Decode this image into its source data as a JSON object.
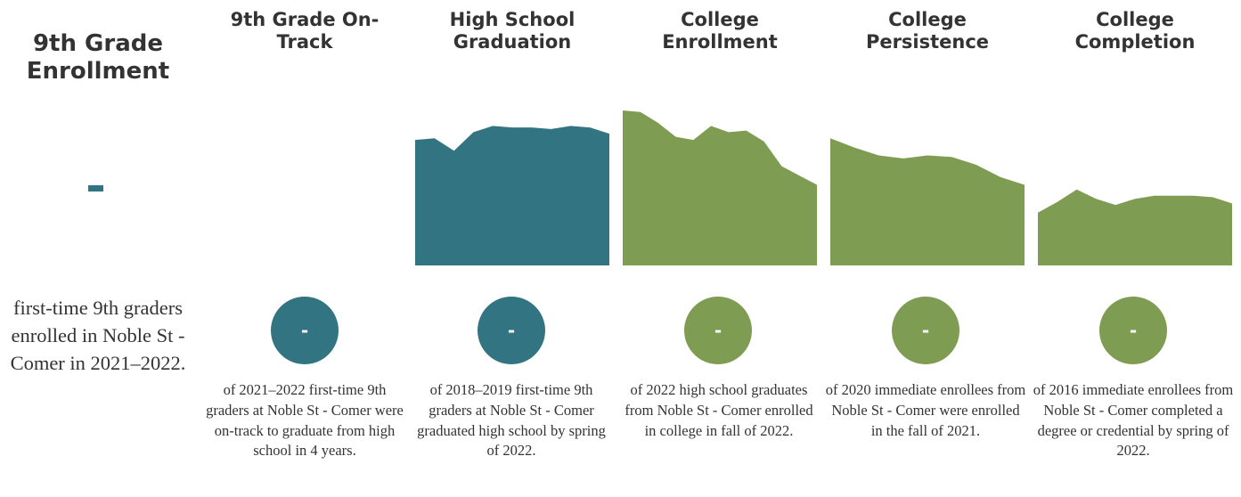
{
  "enrollment": {
    "title": "9th Grade\nEnrollment",
    "value": "-",
    "description": "first-time 9th graders enrolled in Noble St - Comer in 2021–2022."
  },
  "columns": [
    {
      "title": "9th Grade On-\nTrack",
      "value": "-",
      "description": "of 2021–2022 first-time 9th graders at Noble St - Comer were on-track to graduate from high school in 4 years.",
      "color": "#337482"
    },
    {
      "title": "High School\nGraduation",
      "value": "-",
      "description": "of 2018–2019 first-time 9th graders at Noble St - Comer graduated high school by spring of 2022.",
      "color": "#337482"
    },
    {
      "title": "College\nEnrollment",
      "value": "-",
      "description": "of 2022 high school graduates from Noble St - Comer enrolled in college in fall of 2022.",
      "color": "#7f9c53"
    },
    {
      "title": "College\nPersistence",
      "value": "-",
      "description": "of 2020 immediate enrollees from Noble St - Comer were enrolled in the fall of 2021.",
      "color": "#7f9c53"
    },
    {
      "title": "College\nCompletion",
      "value": "-",
      "description": "of 2016 immediate enrollees from Noble St - Comer completed a degree or credential by spring of 2022.",
      "color": "#7f9c53"
    }
  ],
  "chart_data": {
    "type": "area",
    "ylim": [
      0,
      100
    ],
    "series": [
      {
        "values": []
      },
      {
        "values": [
          81,
          82,
          74,
          86,
          90,
          89,
          89,
          88,
          90,
          89,
          85
        ]
      },
      {
        "values": [
          100,
          99,
          92,
          83,
          81,
          90,
          86,
          87,
          80,
          64,
          58,
          52
        ]
      },
      {
        "values": [
          82,
          76,
          71,
          69,
          71,
          70,
          65,
          57,
          52
        ]
      },
      {
        "values": [
          34,
          41,
          49,
          43,
          39,
          43,
          45,
          45,
          45,
          44,
          40
        ]
      }
    ]
  }
}
